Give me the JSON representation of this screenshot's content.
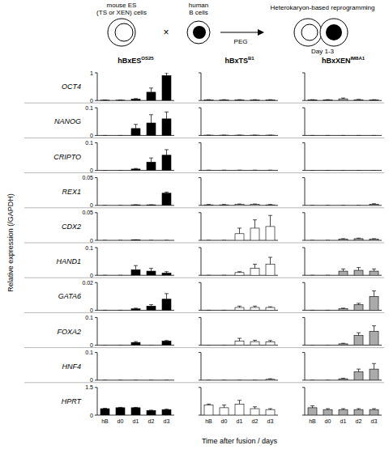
{
  "schematic": {
    "es_label": [
      "mouse ES",
      "(TS or XEN) cells"
    ],
    "b_label": [
      "human",
      "B cells"
    ],
    "times": "×",
    "agent": "PEG",
    "result_label": "Heterokaryon-based reprogramming",
    "result_days": "Day 1-3"
  },
  "columns": [
    {
      "name": "hBxES",
      "sup": "OS25"
    },
    {
      "name": "hBxTS",
      "sup": "B1"
    },
    {
      "name": "hBxXEN",
      "sup": "IM8A1"
    }
  ],
  "ylabel": "Relative expression (/GAPDH)",
  "xlabel": "Time after fusion / days",
  "categories": [
    "hB",
    "d0",
    "d1",
    "d2",
    "d3"
  ],
  "chart_data": [
    {
      "type": "bar",
      "title": "OCT4",
      "ylim": [
        0,
        1
      ],
      "yticks": [
        0,
        1
      ],
      "series": [
        {
          "color": "#000000",
          "values": [
            0.01,
            0.01,
            0.05,
            0.3,
            0.9
          ],
          "errors": [
            0.005,
            0.005,
            0.02,
            0.15,
            0.1
          ]
        },
        {
          "color": "#ffffff",
          "values": [
            0.02,
            0.02,
            0.02,
            0.02,
            0.02
          ],
          "errors": [
            0.01,
            0.01,
            0.01,
            0.01,
            0.01
          ]
        },
        {
          "color": "#aaaaaa",
          "values": [
            0.02,
            0.02,
            0.06,
            0.03,
            0.02
          ],
          "errors": [
            0.01,
            0.01,
            0.03,
            0.01,
            0.01
          ]
        }
      ]
    },
    {
      "type": "bar",
      "title": "NANOG",
      "ylim": [
        0,
        0.1
      ],
      "yticks": [
        0,
        0.1
      ],
      "series": [
        {
          "color": "#000000",
          "values": [
            0,
            0,
            0.025,
            0.045,
            0.06
          ],
          "errors": [
            0,
            0,
            0.015,
            0.03,
            0.025
          ]
        },
        {
          "color": "#ffffff",
          "values": [
            0.001,
            0.001,
            0.001,
            0.001,
            0.001
          ],
          "errors": [
            0,
            0,
            0,
            0,
            0
          ]
        },
        {
          "color": "#aaaaaa",
          "values": [
            0,
            0,
            0,
            0,
            0
          ],
          "errors": [
            0,
            0,
            0,
            0,
            0
          ]
        }
      ]
    },
    {
      "type": "bar",
      "title": "CRIPTO",
      "ylim": [
        0,
        0.1
      ],
      "yticks": [
        0,
        0.1
      ],
      "series": [
        {
          "color": "#000000",
          "values": [
            0,
            0,
            0.005,
            0.03,
            0.055
          ],
          "errors": [
            0,
            0,
            0.002,
            0.015,
            0.02
          ]
        },
        {
          "color": "#ffffff",
          "values": [
            0.001,
            0.001,
            0.001,
            0.001,
            0.001
          ],
          "errors": [
            0,
            0,
            0,
            0,
            0
          ]
        },
        {
          "color": "#aaaaaa",
          "values": [
            0,
            0,
            0,
            0,
            0
          ],
          "errors": [
            0,
            0,
            0,
            0,
            0
          ]
        }
      ]
    },
    {
      "type": "bar",
      "title": "REX1",
      "ylim": [
        0,
        0.05
      ],
      "yticks": [
        0,
        0.05
      ],
      "series": [
        {
          "color": "#000000",
          "values": [
            0,
            0,
            0.001,
            0.001,
            0.022
          ],
          "errors": [
            0,
            0,
            0,
            0,
            0.002
          ]
        },
        {
          "color": "#ffffff",
          "values": [
            0.001,
            0.001,
            0.002,
            0.002,
            0.001
          ],
          "errors": [
            0.0005,
            0.0005,
            0.0005,
            0.0005,
            0.0005
          ]
        },
        {
          "color": "#aaaaaa",
          "values": [
            0,
            0,
            0,
            0,
            0.002
          ],
          "errors": [
            0,
            0,
            0,
            0,
            0.001
          ]
        }
      ]
    },
    {
      "type": "bar",
      "title": "CDX2",
      "ylim": [
        0,
        0.05
      ],
      "yticks": [
        0,
        0.05
      ],
      "series": [
        {
          "color": "#000000",
          "values": [
            0,
            0,
            0.001,
            0,
            0
          ],
          "errors": [
            0,
            0,
            0,
            0,
            0
          ]
        },
        {
          "color": "#ffffff",
          "values": [
            0,
            0,
            0.012,
            0.022,
            0.025
          ],
          "errors": [
            0,
            0,
            0.01,
            0.015,
            0.02
          ]
        },
        {
          "color": "#aaaaaa",
          "values": [
            0,
            0,
            0.002,
            0.003,
            0.002
          ],
          "errors": [
            0,
            0,
            0.001,
            0.001,
            0.001
          ]
        }
      ]
    },
    {
      "type": "bar",
      "title": "HAND1",
      "ylim": [
        0,
        0.1
      ],
      "yticks": [
        0,
        0.1
      ],
      "series": [
        {
          "color": "#000000",
          "values": [
            0,
            0,
            0.02,
            0.015,
            0.008
          ],
          "errors": [
            0,
            0,
            0.015,
            0.01,
            0.005
          ]
        },
        {
          "color": "#ffffff",
          "values": [
            0,
            0,
            0.01,
            0.025,
            0.04
          ],
          "errors": [
            0,
            0,
            0.003,
            0.015,
            0.025
          ]
        },
        {
          "color": "#aaaaaa",
          "values": [
            0,
            0,
            0.015,
            0.018,
            0.015
          ],
          "errors": [
            0,
            0,
            0.008,
            0.01,
            0.008
          ]
        }
      ]
    },
    {
      "type": "bar",
      "title": "GATA6",
      "ylim": [
        0,
        0.02
      ],
      "yticks": [
        0,
        0.02
      ],
      "series": [
        {
          "color": "#000000",
          "values": [
            0,
            0,
            0.001,
            0.003,
            0.008
          ],
          "errors": [
            0,
            0,
            0.0005,
            0.001,
            0.004
          ]
        },
        {
          "color": "#ffffff",
          "values": [
            0,
            0,
            0.002,
            0.002,
            0.002
          ],
          "errors": [
            0,
            0,
            0.001,
            0.001,
            0.0005
          ]
        },
        {
          "color": "#aaaaaa",
          "values": [
            0,
            0,
            0.001,
            0.004,
            0.01
          ],
          "errors": [
            0,
            0,
            0.0005,
            0.001,
            0.004
          ]
        }
      ]
    },
    {
      "type": "bar",
      "title": "FOXA2",
      "ylim": [
        0,
        0.1
      ],
      "yticks": [
        0,
        0.1
      ],
      "series": [
        {
          "color": "#000000",
          "values": [
            0,
            0,
            0.01,
            0,
            0.015
          ],
          "errors": [
            0,
            0,
            0.003,
            0,
            0.002
          ]
        },
        {
          "color": "#ffffff",
          "values": [
            0,
            0,
            0.015,
            0.013,
            0.012
          ],
          "errors": [
            0,
            0,
            0.01,
            0.005,
            0.005
          ]
        },
        {
          "color": "#aaaaaa",
          "values": [
            0,
            0,
            0.005,
            0.035,
            0.05
          ],
          "errors": [
            0,
            0,
            0.002,
            0.01,
            0.02
          ]
        }
      ]
    },
    {
      "type": "bar",
      "title": "HNF4",
      "ylim": [
        0,
        0.1
      ],
      "yticks": [
        0,
        0.1
      ],
      "series": [
        {
          "color": "#000000",
          "values": [
            0,
            0,
            0,
            0,
            0
          ],
          "errors": [
            0,
            0,
            0,
            0,
            0
          ]
        },
        {
          "color": "#ffffff",
          "values": [
            0,
            0,
            0,
            0,
            0.003
          ],
          "errors": [
            0,
            0,
            0,
            0,
            0.002
          ]
        },
        {
          "color": "#aaaaaa",
          "values": [
            0,
            0,
            0.005,
            0.03,
            0.04
          ],
          "errors": [
            0,
            0,
            0.002,
            0.01,
            0.02
          ]
        }
      ]
    },
    {
      "type": "bar",
      "title": "HPRT",
      "ylim": [
        0,
        1.5
      ],
      "yticks": [
        0,
        1.5
      ],
      "series": [
        {
          "color": "#000000",
          "values": [
            0.35,
            0.4,
            0.4,
            0.25,
            0.3
          ],
          "errors": [
            0.02,
            0.02,
            0.02,
            0.02,
            0.02
          ]
        },
        {
          "color": "#ffffff",
          "values": [
            0.55,
            0.4,
            0.6,
            0.35,
            0.3
          ],
          "errors": [
            0.05,
            0.15,
            0.2,
            0.1,
            0.05
          ]
        },
        {
          "color": "#aaaaaa",
          "values": [
            0.4,
            0.3,
            0.3,
            0.3,
            0.3
          ],
          "errors": [
            0.1,
            0.05,
            0.05,
            0.05,
            0.05
          ]
        }
      ]
    }
  ]
}
